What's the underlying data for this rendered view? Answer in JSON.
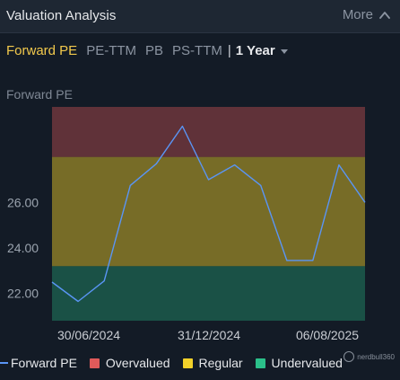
{
  "header": {
    "title": "Valuation Analysis",
    "more_label": "More"
  },
  "tabs": [
    {
      "label": "Forward PE",
      "active": true
    },
    {
      "label": "PE-TTM",
      "active": false
    },
    {
      "label": "PB",
      "active": false
    },
    {
      "label": "PS-TTM",
      "active": false
    }
  ],
  "separator": "|",
  "period": {
    "selected": "1 Year"
  },
  "chart_label": "Forward PE",
  "colors": {
    "line": "#5a95f5",
    "overvalued": "#e05a5a",
    "regular": "#f2d12a",
    "undervalued": "#2bc08a",
    "active_tab": "#f2c94c"
  },
  "chart_data": {
    "type": "line",
    "title": "",
    "ylabel": "Forward PE",
    "x_ticks": [
      "30/06/2024",
      "31/12/2024",
      "06/08/2025"
    ],
    "y_ticks": [
      "22.00",
      "24.00",
      "26.00"
    ],
    "bands": [
      {
        "name": "Undervalued",
        "from": 20.8,
        "to": 23.2
      },
      {
        "name": "Regular",
        "from": 23.2,
        "to": 28.0
      },
      {
        "name": "Overvalued",
        "from": 28.0,
        "to": 30.2
      }
    ],
    "series": [
      {
        "name": "Forward PE",
        "values": [
          22.5,
          21.65,
          22.55,
          26.75,
          27.7,
          29.35,
          27.0,
          27.65,
          26.75,
          23.45,
          23.45,
          27.65,
          26.0
        ]
      }
    ],
    "ylim": [
      20.8,
      30.2
    ]
  },
  "legend": [
    {
      "label": "Forward PE",
      "kind": "line"
    },
    {
      "label": "Overvalued",
      "kind": "box"
    },
    {
      "label": "Regular",
      "kind": "box"
    },
    {
      "label": "Undervalued",
      "kind": "box"
    }
  ],
  "watermark": "nerdbull360"
}
